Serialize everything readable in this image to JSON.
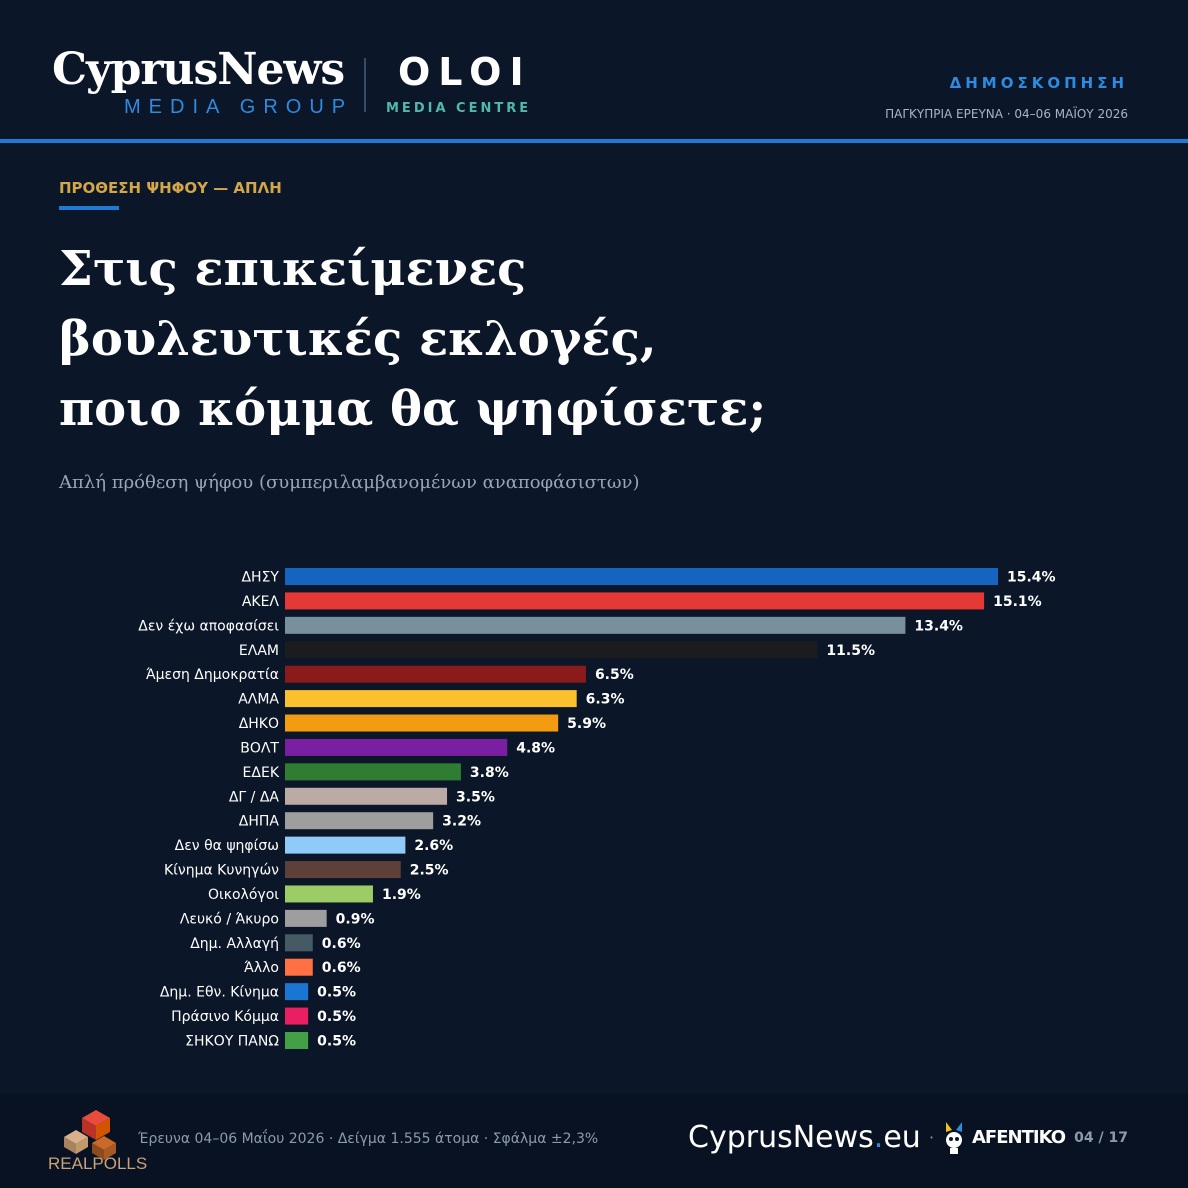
{
  "header": {
    "logo_main": "CyprusNews",
    "logo_sub": "MEDIA GROUP",
    "partner_main": "OLOI",
    "partner_sub": "MEDIA CENTRE",
    "kicker": "ΔΗΜΟΣΚΟΠΗΣΗ",
    "survey_info": "ΠΑΓΚΥΠΡΙΑ ΕΡΕΥΝΑ · 04–06 ΜΑΪΟΥ 2026"
  },
  "section_label": "ΠΡΟΘΕΣΗ ΨΗΦΟΥ — ΑΠΛΗ",
  "headline": {
    "line1": "Στις επικείμενες",
    "line2": "βουλευτικές εκλογές,",
    "line3": "ποιο κόμμα θα ψηφίσετε;"
  },
  "subtitle": "Απλή πρόθεση ψήφου (συμπεριλαμβανομένων αναποφάσιστων)",
  "chart_data": {
    "type": "bar",
    "orientation": "horizontal",
    "categories": [
      "ΔΗΣΥ",
      "ΑΚΕΛ",
      "Δεν έχω αποφασίσει",
      "ΕΛΑΜ",
      "Άμεση Δημοκρατία",
      "ΑΛΜΑ",
      "ΔΗΚΟ",
      "ΒΟΛΤ",
      "ΕΔΕΚ",
      "ΔΓ / ΔΑ",
      "ΔΗΠΑ",
      "Δεν θα ψηφίσω",
      "Κίνημα Κυνηγών",
      "Οικολόγοι",
      "Λευκό / Άκυρο",
      "Δημ. Αλλαγή",
      "Άλλο",
      "Δημ. Εθν. Κίνημα",
      "Πράσινο Κόμμα",
      "ΣΗΚΟΥ ΠΑΝΩ"
    ],
    "values": [
      15.4,
      15.1,
      13.4,
      11.5,
      6.5,
      6.3,
      5.9,
      4.8,
      3.8,
      3.5,
      3.2,
      2.6,
      2.5,
      1.9,
      0.9,
      0.6,
      0.6,
      0.5,
      0.5,
      0.5
    ],
    "value_labels": [
      "15.4%",
      "15.1%",
      "13.4%",
      "11.5%",
      "6.5%",
      "6.3%",
      "5.9%",
      "4.8%",
      "3.8%",
      "3.5%",
      "3.2%",
      "2.6%",
      "2.5%",
      "1.9%",
      "0.9%",
      "0.6%",
      "0.6%",
      "0.5%",
      "0.5%",
      "0.5%"
    ],
    "colors": [
      "#1565c0",
      "#e53935",
      "#78909c",
      "#1c1c1e",
      "#8b1a1a",
      "#fbc02d",
      "#f39c12",
      "#7b1fa2",
      "#2e7d32",
      "#bcaaa4",
      "#9e9e9e",
      "#90caf9",
      "#5d4037",
      "#9ccc65",
      "#9e9e9e",
      "#455a64",
      "#ff7043",
      "#1976d2",
      "#e91e63",
      "#43a047"
    ],
    "xlim": [
      0,
      15.4
    ],
    "grid": false,
    "legend": "none"
  },
  "footer": {
    "pollster": "REALPOLLS",
    "info": "Έρευνα 04–06 Μαΐου 2026 · Δείγμα 1.555 άτομα · Σφάλμα ±2,3%",
    "brand_name": "CyprusNews",
    "brand_tld": "eu",
    "separator": "·",
    "partner": "AFENTIKO",
    "page": "04 / 17"
  }
}
